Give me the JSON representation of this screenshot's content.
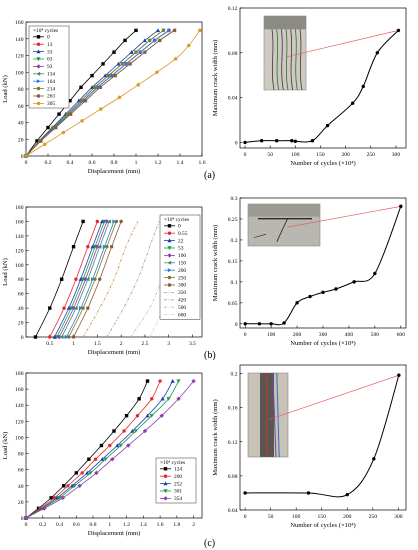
{
  "figure_labels": [
    "(a)",
    "(b)",
    "(c)"
  ],
  "chart_data": [
    {
      "id": "a-left",
      "type": "line",
      "xlabel": "Displacement (mm)",
      "ylabel": "Load (kN)",
      "xlim": [
        0,
        1.6
      ],
      "ylim": [
        0,
        160
      ],
      "xticks": [
        0,
        0.2,
        0.4,
        0.6,
        0.8,
        1.0,
        1.2,
        1.4,
        1.6
      ],
      "yticks": [
        0,
        20,
        40,
        60,
        80,
        100,
        120,
        140,
        160
      ],
      "legend_title": "×10⁴ cycles",
      "legend_position": "top-left",
      "series": [
        {
          "name": "0",
          "color": "#000000",
          "marker": "square",
          "x": [
            0,
            0.1,
            0.2,
            0.3,
            0.4,
            0.5,
            0.6,
            0.7,
            0.8,
            0.9,
            1.0
          ],
          "y": [
            0,
            18,
            34,
            50,
            66,
            82,
            96,
            110,
            124,
            138,
            150
          ]
        },
        {
          "name": "13",
          "color": "#e8262b",
          "marker": "circle",
          "x": [
            0,
            0.13,
            0.26,
            0.39,
            0.52,
            0.65,
            0.78,
            0.91,
            1.04,
            1.17,
            1.3
          ],
          "y": [
            0,
            18,
            34,
            50,
            66,
            82,
            96,
            110,
            124,
            138,
            150
          ]
        },
        {
          "name": "33",
          "color": "#1f3fae",
          "marker": "triangle",
          "x": [
            0,
            0.12,
            0.24,
            0.36,
            0.48,
            0.6,
            0.72,
            0.84,
            0.96,
            1.08,
            1.2
          ],
          "y": [
            0,
            18,
            34,
            50,
            66,
            82,
            96,
            110,
            124,
            138,
            150
          ]
        },
        {
          "name": "63",
          "color": "#1a9a52",
          "marker": "triangle-down",
          "x": [
            0,
            0.125,
            0.25,
            0.375,
            0.5,
            0.625,
            0.75,
            0.875,
            1.0,
            1.125,
            1.25
          ],
          "y": [
            0,
            18,
            34,
            50,
            66,
            82,
            96,
            110,
            124,
            138,
            150
          ]
        },
        {
          "name": "93",
          "color": "#8e3fae",
          "marker": "diamond",
          "x": [
            0,
            0.13,
            0.26,
            0.39,
            0.52,
            0.65,
            0.78,
            0.91,
            1.04,
            1.17,
            1.3
          ],
          "y": [
            0,
            18,
            34,
            50,
            66,
            82,
            96,
            110,
            124,
            138,
            150
          ]
        },
        {
          "name": "134",
          "color": "#3a8f6a",
          "marker": "triangle-left",
          "x": [
            0,
            0.135,
            0.27,
            0.405,
            0.54,
            0.675,
            0.81,
            0.945,
            1.08,
            1.215,
            1.35
          ],
          "y": [
            0,
            18,
            34,
            50,
            66,
            82,
            96,
            110,
            124,
            138,
            150
          ]
        },
        {
          "name": "164",
          "color": "#2a7fd6",
          "marker": "triangle-right",
          "x": [
            0,
            0.13,
            0.26,
            0.39,
            0.52,
            0.65,
            0.78,
            0.91,
            1.04,
            1.17,
            1.3
          ],
          "y": [
            0,
            18,
            34,
            50,
            66,
            82,
            96,
            110,
            124,
            138,
            150
          ]
        },
        {
          "name": "214",
          "color": "#7d7a2a",
          "marker": "hexagon",
          "x": [
            0,
            0.125,
            0.25,
            0.375,
            0.5,
            0.625,
            0.75,
            0.875,
            1.0,
            1.125,
            1.25
          ],
          "y": [
            0,
            18,
            34,
            50,
            66,
            82,
            96,
            110,
            124,
            138,
            150
          ]
        },
        {
          "name": "263",
          "color": "#8a5a3a",
          "marker": "pentagon",
          "x": [
            0,
            0.135,
            0.27,
            0.405,
            0.54,
            0.675,
            0.81,
            0.945,
            1.08,
            1.215,
            1.35
          ],
          "y": [
            0,
            18,
            34,
            50,
            66,
            82,
            96,
            110,
            124,
            138,
            150
          ]
        },
        {
          "name": "305",
          "color": "#d99a1e",
          "marker": "circle",
          "x": [
            0,
            0.17,
            0.34,
            0.51,
            0.68,
            0.85,
            1.02,
            1.19,
            1.36,
            1.48,
            1.58
          ],
          "y": [
            0,
            14,
            28,
            42,
            56,
            70,
            85,
            100,
            116,
            132,
            150
          ]
        }
      ]
    },
    {
      "id": "a-right",
      "type": "line",
      "xlabel": "Number of cycles (×10⁴)",
      "ylabel": "Maximum crack width (mm)",
      "xlim": [
        -10,
        320
      ],
      "ylim": [
        -0.005,
        0.12
      ],
      "xticks": [
        0,
        50,
        100,
        150,
        200,
        250,
        300
      ],
      "yticks": [
        0,
        0.04,
        0.08,
        0.12
      ],
      "inset": {
        "type": "crack-photo-straight"
      },
      "series": [
        {
          "name": "",
          "color": "#000000",
          "marker": "circle",
          "x": [
            0,
            33,
            63,
            93,
            100,
            134,
            164,
            214,
            235,
            263,
            305
          ],
          "y": [
            0,
            0.0015,
            0.0015,
            0.0015,
            0.001,
            0.0015,
            0.015,
            0.035,
            0.05,
            0.08,
            0.1
          ]
        }
      ]
    },
    {
      "id": "b-left",
      "type": "line",
      "xlabel": "Displacement (mm)",
      "ylabel": "Load (kN)",
      "xlim": [
        0,
        3.7
      ],
      "ylim": [
        0,
        180
      ],
      "xticks": [
        0.5,
        1.0,
        1.5,
        2.0,
        2.5,
        3.0,
        3.5
      ],
      "yticks": [
        0,
        20,
        40,
        60,
        80,
        100,
        120,
        140,
        160,
        180
      ],
      "legend_title": "×10⁴ cycles",
      "legend_position": "right",
      "series": [
        {
          "name": "0",
          "color": "#000000",
          "marker": "square",
          "x": [
            0.2,
            0.5,
            0.75,
            1.0,
            1.2
          ],
          "y": [
            0,
            40,
            80,
            125,
            160
          ]
        },
        {
          "name": "0.55",
          "color": "#e8262b",
          "marker": "circle",
          "x": [
            0.5,
            0.8,
            1.05,
            1.3,
            1.5
          ],
          "y": [
            0,
            40,
            80,
            125,
            160
          ]
        },
        {
          "name": "22",
          "color": "#1f3fae",
          "marker": "triangle",
          "x": [
            0.6,
            0.9,
            1.15,
            1.4,
            1.6
          ],
          "y": [
            0,
            40,
            80,
            125,
            160
          ]
        },
        {
          "name": "53",
          "color": "#1a9a52",
          "marker": "triangle-down",
          "x": [
            0.65,
            0.95,
            1.2,
            1.45,
            1.65
          ],
          "y": [
            0,
            40,
            80,
            125,
            160
          ]
        },
        {
          "name": "100",
          "color": "#8e3fae",
          "marker": "diamond",
          "x": [
            0.7,
            1.0,
            1.25,
            1.5,
            1.7
          ],
          "y": [
            0,
            40,
            80,
            125,
            160
          ]
        },
        {
          "name": "150",
          "color": "#3a8f6a",
          "marker": "triangle-left",
          "x": [
            0.75,
            1.05,
            1.3,
            1.55,
            1.75
          ],
          "y": [
            0,
            40,
            80,
            125,
            160
          ]
        },
        {
          "name": "200",
          "color": "#2a7fd6",
          "marker": "triangle-right",
          "x": [
            0.85,
            1.15,
            1.4,
            1.65,
            1.85
          ],
          "y": [
            0,
            40,
            80,
            125,
            160
          ]
        },
        {
          "name": "250",
          "color": "#7d7a2a",
          "marker": "hexagon",
          "x": [
            0.9,
            1.2,
            1.45,
            1.7,
            1.9
          ],
          "y": [
            0,
            40,
            80,
            125,
            160
          ]
        },
        {
          "name": "300",
          "color": "#8a5a3a",
          "marker": "pentagon",
          "x": [
            1.0,
            1.3,
            1.55,
            1.8,
            2.0
          ],
          "y": [
            0,
            40,
            80,
            125,
            160
          ]
        },
        {
          "name": "350",
          "color": "#c98a4a",
          "marker": "none",
          "x": [
            1.2,
            1.55,
            1.85,
            2.1,
            2.35
          ],
          "y": [
            0,
            40,
            80,
            125,
            160
          ]
        },
        {
          "name": "420",
          "color": "#9a9a9a",
          "marker": "none",
          "x": [
            1.7,
            2.05,
            2.35,
            2.6,
            2.8
          ],
          "y": [
            0,
            40,
            80,
            125,
            160
          ]
        },
        {
          "name": "500",
          "color": "#bdbdbd",
          "marker": "none",
          "x": [
            2.2,
            2.6,
            2.85,
            3.05,
            3.2
          ],
          "y": [
            0,
            40,
            80,
            125,
            160
          ]
        },
        {
          "name": "600",
          "color": "#d0d0d0",
          "marker": "none",
          "x": [
            2.6,
            2.9,
            3.15,
            3.35,
            3.5
          ],
          "y": [
            0,
            40,
            80,
            125,
            160
          ]
        }
      ]
    },
    {
      "id": "b-right",
      "type": "line",
      "xlabel": "Number of cycles (×10⁴)",
      "ylabel": "Maximum crack width (mm)",
      "xlim": [
        -20,
        620
      ],
      "ylim": [
        -0.01,
        0.3
      ],
      "xticks": [
        0,
        100,
        200,
        300,
        400,
        500,
        600
      ],
      "yticks": [
        0,
        0.05,
        0.1,
        0.15,
        0.2,
        0.25,
        0.3
      ],
      "inset": {
        "type": "crack-photo-beam"
      },
      "series": [
        {
          "name": "",
          "color": "#000000",
          "marker": "circle",
          "x": [
            0,
            55,
            100,
            150,
            200,
            250,
            300,
            350,
            420,
            500,
            600
          ],
          "y": [
            0,
            0,
            0,
            0.002,
            0.05,
            0.065,
            0.075,
            0.083,
            0.1,
            0.12,
            0.28
          ]
        }
      ]
    },
    {
      "id": "c-left",
      "type": "line",
      "xlabel": "Displacement (mm)",
      "ylabel": "Load (kN)",
      "xlim": [
        0,
        2.1
      ],
      "ylim": [
        0,
        180
      ],
      "xticks": [
        0.0,
        0.2,
        0.4,
        0.6,
        0.8,
        1.0,
        1.2,
        1.4,
        1.6,
        1.8,
        2.0
      ],
      "yticks": [
        0,
        20,
        40,
        60,
        80,
        100,
        120,
        140,
        160,
        180
      ],
      "legend_title": "×10⁴ cycles",
      "legend_position": "bottom-right",
      "series": [
        {
          "name": "124",
          "color": "#000000",
          "marker": "square",
          "x": [
            0,
            0.15,
            0.3,
            0.45,
            0.6,
            0.75,
            0.9,
            1.05,
            1.2,
            1.35,
            1.45
          ],
          "y": [
            0,
            12,
            25,
            40,
            56,
            73,
            90,
            108,
            127,
            148,
            170
          ]
        },
        {
          "name": "200",
          "color": "#e8262b",
          "marker": "circle",
          "x": [
            0,
            0.17,
            0.34,
            0.5,
            0.67,
            0.83,
            1.0,
            1.17,
            1.33,
            1.5,
            1.6
          ],
          "y": [
            0,
            12,
            25,
            40,
            56,
            73,
            90,
            108,
            127,
            148,
            170
          ]
        },
        {
          "name": "252",
          "color": "#1f3fae",
          "marker": "triangle",
          "x": [
            0,
            0.19,
            0.37,
            0.55,
            0.73,
            0.91,
            1.09,
            1.27,
            1.45,
            1.63,
            1.75
          ],
          "y": [
            0,
            12,
            25,
            40,
            56,
            73,
            90,
            108,
            127,
            148,
            170
          ]
        },
        {
          "name": "301",
          "color": "#1a9a52",
          "marker": "triangle-down",
          "x": [
            0,
            0.2,
            0.4,
            0.58,
            0.77,
            0.95,
            1.13,
            1.31,
            1.5,
            1.7,
            1.82
          ],
          "y": [
            0,
            12,
            25,
            40,
            56,
            73,
            90,
            108,
            127,
            148,
            170
          ]
        },
        {
          "name": "354",
          "color": "#8e3fae",
          "marker": "diamond",
          "x": [
            0,
            0.22,
            0.44,
            0.64,
            0.84,
            1.03,
            1.22,
            1.42,
            1.62,
            1.82,
            2.0
          ],
          "y": [
            0,
            12,
            25,
            40,
            56,
            73,
            90,
            108,
            127,
            148,
            170
          ]
        }
      ]
    },
    {
      "id": "c-right",
      "type": "line",
      "xlabel": "Number of cycles (×10⁴)",
      "ylabel": "Maximum crack width (mm)",
      "xlim": [
        -10,
        315
      ],
      "ylim": [
        0.04,
        0.21
      ],
      "xticks": [
        0,
        50,
        100,
        150,
        200,
        250,
        300
      ],
      "yticks": [
        0.04,
        0.08,
        0.12,
        0.16,
        0.2
      ],
      "inset": {
        "type": "crack-photo-vertical"
      },
      "series": [
        {
          "name": "",
          "color": "#000000",
          "marker": "circle",
          "x": [
            0,
            124,
            200,
            252,
            301
          ],
          "y": [
            0.06,
            0.06,
            0.058,
            0.1,
            0.198
          ]
        }
      ]
    }
  ]
}
